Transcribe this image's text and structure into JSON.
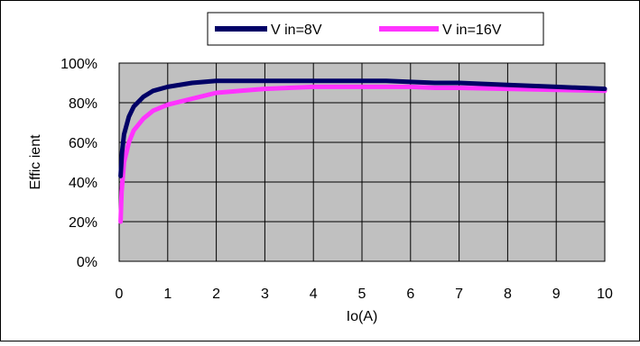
{
  "chart_data": {
    "type": "line",
    "xlabel": "Io(A)",
    "ylabel": "Effic ient",
    "xlim": [
      0,
      10
    ],
    "ylim": [
      0,
      100
    ],
    "xticks": [
      0,
      1,
      2,
      3,
      4,
      5,
      6,
      7,
      8,
      9,
      10
    ],
    "yticks": [
      0,
      20,
      40,
      60,
      80,
      100
    ],
    "y_tick_suffix": "%",
    "grid": true,
    "legend_position": "top",
    "series": [
      {
        "name": "V in=8V",
        "color": "#000066",
        "points": [
          [
            0.03,
            43
          ],
          [
            0.06,
            55
          ],
          [
            0.1,
            64
          ],
          [
            0.2,
            73
          ],
          [
            0.3,
            78
          ],
          [
            0.5,
            83
          ],
          [
            0.7,
            86
          ],
          [
            1.0,
            88
          ],
          [
            1.5,
            90
          ],
          [
            2.0,
            91
          ],
          [
            2.5,
            91
          ],
          [
            3.0,
            91
          ],
          [
            4.0,
            91
          ],
          [
            5.0,
            91
          ],
          [
            5.5,
            91
          ],
          [
            6.0,
            90.5
          ],
          [
            6.5,
            90
          ],
          [
            7.0,
            90
          ],
          [
            8.0,
            89
          ],
          [
            9.0,
            88
          ],
          [
            10.0,
            87
          ]
        ]
      },
      {
        "name": "V in=16V",
        "color": "#ff33ff",
        "points": [
          [
            0.03,
            20
          ],
          [
            0.05,
            35
          ],
          [
            0.1,
            50
          ],
          [
            0.2,
            60
          ],
          [
            0.3,
            66
          ],
          [
            0.5,
            72
          ],
          [
            0.7,
            76
          ],
          [
            1.0,
            79
          ],
          [
            1.5,
            82
          ],
          [
            2.0,
            85
          ],
          [
            2.5,
            86
          ],
          [
            3.0,
            87
          ],
          [
            4.0,
            88
          ],
          [
            5.0,
            88
          ],
          [
            6.0,
            88
          ],
          [
            6.5,
            87.5
          ],
          [
            7.0,
            87.5
          ],
          [
            8.0,
            87
          ],
          [
            9.0,
            86.5
          ],
          [
            10.0,
            86
          ]
        ]
      }
    ],
    "plot_background": "#c0c0c0",
    "grid_color": "#000000"
  }
}
